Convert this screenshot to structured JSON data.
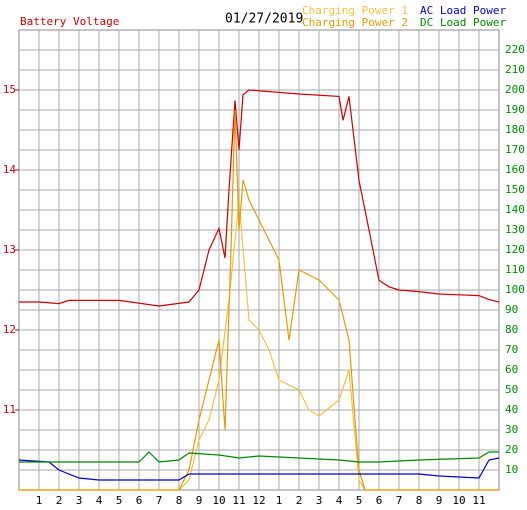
{
  "chart_data": {
    "type": "line",
    "title": "01/27/2019",
    "xlim": [
      0,
      24
    ],
    "xticks": [
      1,
      2,
      3,
      4,
      5,
      6,
      7,
      8,
      9,
      10,
      11,
      12,
      {
        "value": 13,
        "label": "1"
      },
      {
        "value": 14,
        "label": "2"
      },
      {
        "value": 15,
        "label": "3"
      },
      {
        "value": 16,
        "label": "4"
      },
      {
        "value": 17,
        "label": "5"
      },
      {
        "value": 18,
        "label": "6"
      },
      {
        "value": 19,
        "label": "7"
      },
      {
        "value": 20,
        "label": "8"
      },
      {
        "value": 21,
        "label": "9"
      },
      {
        "value": 22,
        "label": "10"
      },
      {
        "value": 23,
        "label": "11"
      }
    ],
    "ylim": [
      10,
      15.75
    ],
    "yticks": [
      11,
      12,
      13,
      14,
      15
    ],
    "y2lim": [
      0,
      230
    ],
    "y2ticks": [
      10,
      20,
      30,
      40,
      50,
      60,
      70,
      80,
      90,
      100,
      110,
      120,
      130,
      140,
      150,
      160,
      170,
      180,
      190,
      200,
      210,
      220
    ],
    "grid": true,
    "series": [
      {
        "name": "Battery Voltage",
        "color": "#cc0000",
        "axis": "y",
        "x": [
          0,
          1,
          2,
          2.5,
          5,
          7,
          8.5,
          9,
          9.5,
          10,
          10.3,
          10.5,
          10.8,
          11,
          11.2,
          11.5,
          12,
          14,
          16,
          16.2,
          16.5,
          17,
          17.5,
          18,
          18.5,
          19,
          20,
          21,
          22,
          23,
          23.5,
          24
        ],
        "values": [
          12.35,
          12.35,
          12.33,
          12.37,
          12.37,
          12.3,
          12.35,
          12.5,
          13.0,
          13.27,
          12.9,
          13.75,
          14.87,
          14.25,
          14.94,
          15.0,
          14.99,
          14.95,
          14.92,
          14.62,
          14.92,
          13.87,
          13.25,
          12.62,
          12.54,
          12.5,
          12.48,
          12.45,
          12.44,
          12.43,
          12.38,
          12.35
        ]
      },
      {
        "name": "Charging Power 1",
        "color": "#f5c040",
        "axis": "y2",
        "x": [
          0,
          8,
          8.5,
          9,
          9.5,
          10,
          10.5,
          11,
          11.5,
          12,
          12.5,
          13,
          14,
          14.5,
          15,
          16,
          16.5,
          17,
          17.3,
          24
        ],
        "values": [
          0,
          0,
          5,
          25,
          35,
          55,
          95,
          145,
          85,
          80,
          70,
          55,
          50,
          40,
          37,
          45,
          60,
          5,
          0,
          0
        ]
      },
      {
        "name": "Charging Power 2",
        "color": "#e89a00",
        "axis": "y2",
        "x": [
          0,
          8,
          8.5,
          9,
          9.5,
          10,
          10.3,
          10.6,
          10.8,
          11,
          11.2,
          11.5,
          12,
          12.5,
          13,
          13.5,
          14,
          15,
          15.5,
          16,
          16.5,
          16.8,
          17,
          17.3,
          24
        ],
        "values": [
          0,
          0,
          10,
          35,
          55,
          75,
          30,
          120,
          190,
          130,
          155,
          145,
          135,
          125,
          115,
          75,
          110,
          105,
          100,
          95,
          75,
          35,
          10,
          0,
          0
        ]
      },
      {
        "name": "AC Load Power",
        "color": "#0000cc",
        "axis": "y2",
        "x": [
          0,
          1.5,
          2,
          3,
          4,
          8,
          8.5,
          20,
          21,
          23,
          23.5,
          24
        ],
        "values": [
          15,
          14,
          10,
          6,
          5,
          5,
          8,
          8,
          7,
          6,
          15,
          16
        ]
      },
      {
        "name": "DC Load Power",
        "color": "#008800",
        "axis": "y2",
        "x": [
          0,
          6,
          6.5,
          7,
          8,
          8.5,
          10,
          11,
          12,
          16,
          17,
          18,
          20,
          23,
          23.5,
          24
        ],
        "values": [
          14,
          14,
          19,
          14,
          15,
          18.5,
          17.5,
          16,
          17,
          15,
          14,
          14,
          15,
          16,
          19,
          19
        ]
      }
    ]
  }
}
